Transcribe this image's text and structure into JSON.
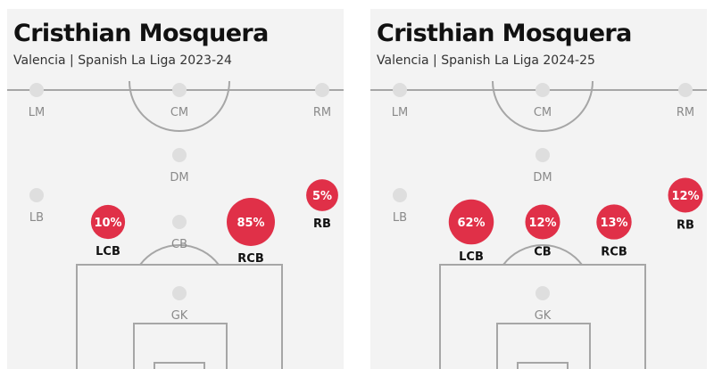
{
  "chart_data": [
    {
      "type": "position-map",
      "title": "Cristhian Mosquera",
      "subtitle": "Valencia | Spanish La Liga 2023-24",
      "positions": [
        {
          "label": "LM",
          "value": null
        },
        {
          "label": "CM",
          "value": null
        },
        {
          "label": "RM",
          "value": null
        },
        {
          "label": "DM",
          "value": null
        },
        {
          "label": "LB",
          "value": null
        },
        {
          "label": "LCB",
          "value": 10
        },
        {
          "label": "CB",
          "value": null
        },
        {
          "label": "RCB",
          "value": 85
        },
        {
          "label": "RB",
          "value": 5
        },
        {
          "label": "GK",
          "value": null
        }
      ]
    },
    {
      "type": "position-map",
      "title": "Cristhian Mosquera",
      "subtitle": "Valencia | Spanish La Liga 2024-25",
      "positions": [
        {
          "label": "LM",
          "value": null
        },
        {
          "label": "CM",
          "value": null
        },
        {
          "label": "RM",
          "value": null
        },
        {
          "label": "DM",
          "value": null
        },
        {
          "label": "LB",
          "value": null
        },
        {
          "label": "LCB",
          "value": 62
        },
        {
          "label": "CB",
          "value": 12
        },
        {
          "label": "RCB",
          "value": 13
        },
        {
          "label": "RB",
          "value": 12
        },
        {
          "label": "GK",
          "value": null
        }
      ]
    }
  ],
  "colors": {
    "active": "#e03048",
    "inactive": "#dedede",
    "pitch_lines": "#a6a6a6",
    "active_label": "#111111",
    "inactive_label": "#8a8a8a"
  }
}
